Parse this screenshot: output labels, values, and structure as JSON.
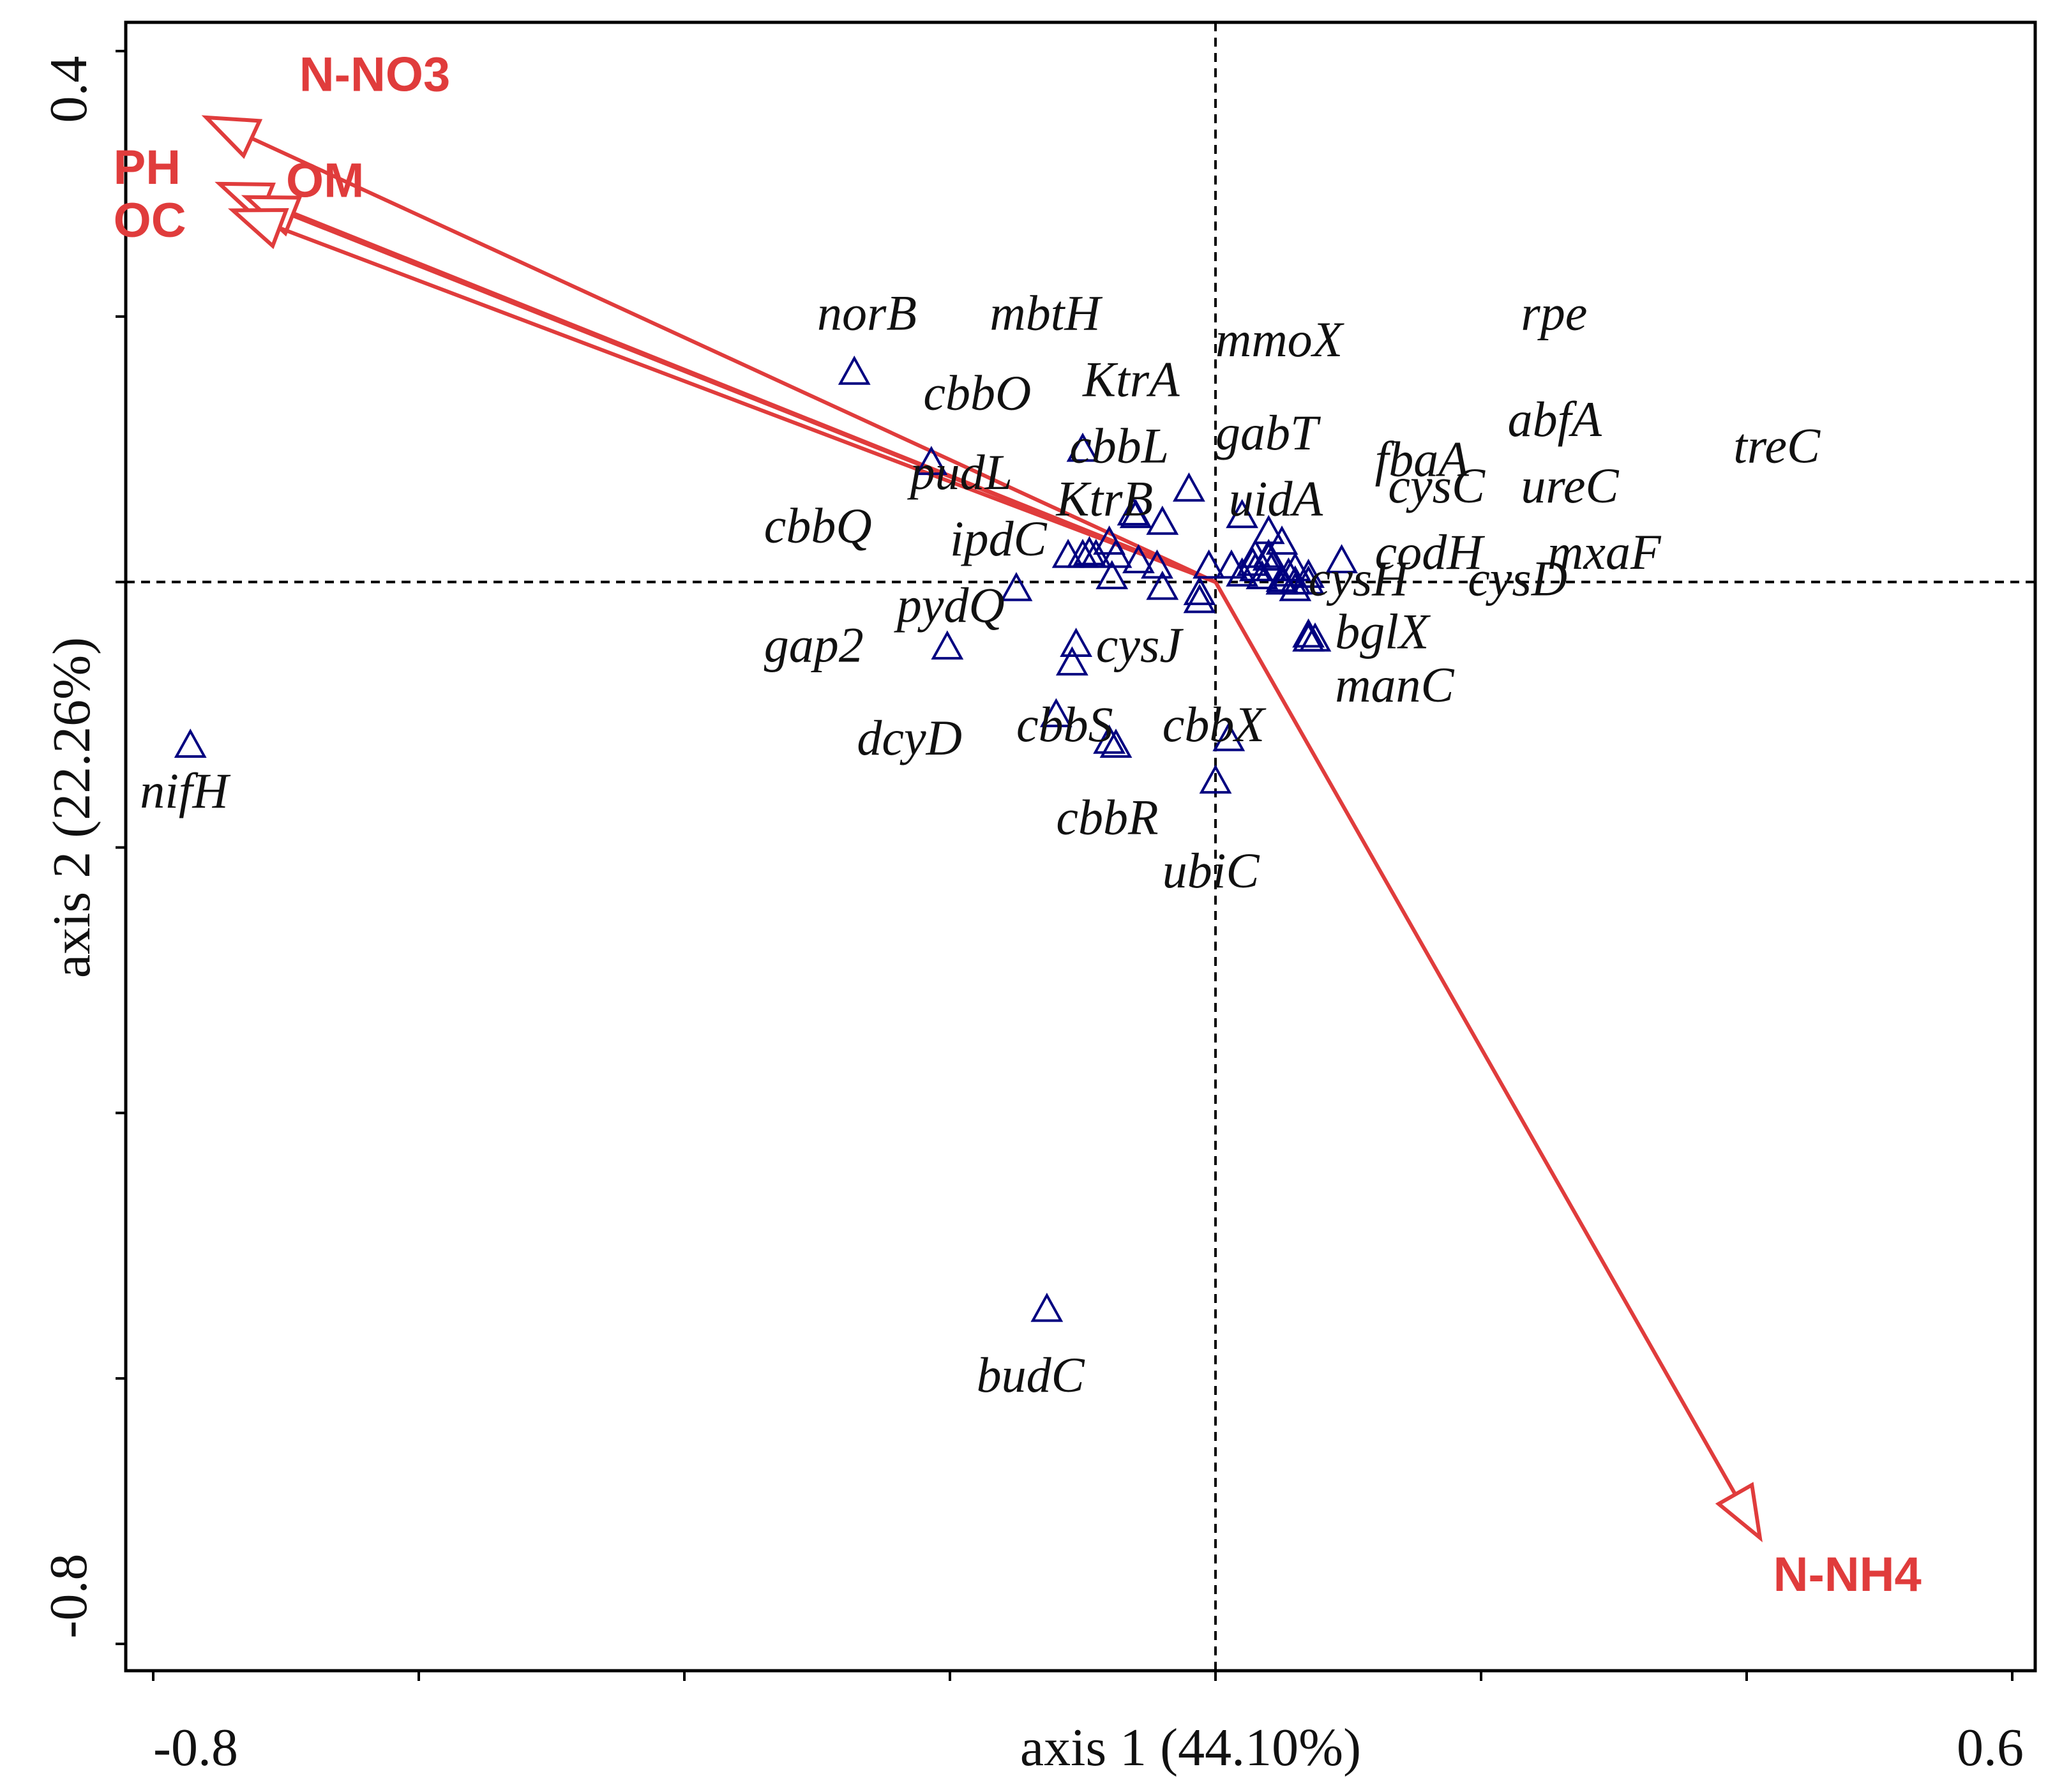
{
  "chart_data": {
    "type": "scatter",
    "subtype": "RDA biplot",
    "xlabel": "axis 1 (44.10%)",
    "ylabel": "axis 2 (22.26%)",
    "xlim": [
      -0.8,
      0.6
    ],
    "ylim": [
      -0.8,
      0.4
    ],
    "x_tick_labels": [
      "-0.8",
      "0.6"
    ],
    "y_tick_labels": [
      "0.4",
      "-0.8"
    ],
    "x_ticks": [
      -0.8,
      -0.6,
      -0.4,
      -0.2,
      0.0,
      0.2,
      0.4,
      0.6
    ],
    "y_ticks": [
      0.4,
      0.2,
      0.0,
      -0.2,
      -0.4,
      -0.6,
      -0.8
    ],
    "zero_lines": true,
    "colors": {
      "arrows": "#e03c3c",
      "genes": "#000080",
      "text": "#111111"
    },
    "env_vectors": [
      {
        "name": "N-NO3",
        "x": -0.76,
        "y": 0.35
      },
      {
        "name": "PH",
        "x": -0.75,
        "y": 0.3
      },
      {
        "name": "OM",
        "x": -0.73,
        "y": 0.29
      },
      {
        "name": "OC",
        "x": -0.74,
        "y": 0.28
      },
      {
        "name": "N-NH4",
        "x": 0.41,
        "y": -0.72
      }
    ],
    "genes": [
      {
        "name": "norB",
        "x": -0.272,
        "y": 0.158
      },
      {
        "name": "mbtH",
        "x": -0.1,
        "y": 0.1
      },
      {
        "name": "mmoX",
        "x": 0.02,
        "y": 0.05
      },
      {
        "name": "rpe",
        "x": 0.05,
        "y": 0.03
      },
      {
        "name": "cbbO",
        "x": -0.08,
        "y": 0.03
      },
      {
        "name": "KtrA",
        "x": -0.06,
        "y": 0.05
      },
      {
        "name": "gabT",
        "x": 0.03,
        "y": 0.01
      },
      {
        "name": "abfA",
        "x": 0.06,
        "y": 0.01
      },
      {
        "name": "cbbL",
        "x": -0.02,
        "y": 0.07
      },
      {
        "name": "fbaA",
        "x": 0.04,
        "y": 0.02
      },
      {
        "name": "treC",
        "x": 0.07,
        "y": 0.005
      },
      {
        "name": "pudL",
        "x": -0.214,
        "y": 0.09
      },
      {
        "name": "uidA",
        "x": 0.04,
        "y": 0.038
      },
      {
        "name": "cysC",
        "x": 0.05,
        "y": 0.0
      },
      {
        "name": "ureC",
        "x": 0.06,
        "y": 0.0
      },
      {
        "name": "KtrB",
        "x": -0.062,
        "y": 0.052
      },
      {
        "name": "cbbQ",
        "x": -0.1,
        "y": 0.02
      },
      {
        "name": "ipdC",
        "x": -0.09,
        "y": 0.02
      },
      {
        "name": "codH",
        "x": 0.095,
        "y": 0.016
      },
      {
        "name": "mxaF",
        "x": 0.07,
        "y": 0.0
      },
      {
        "name": "cysH",
        "x": 0.05,
        "y": 0.0
      },
      {
        "name": "cysD",
        "x": 0.06,
        "y": -0.005
      },
      {
        "name": "pydQ",
        "x": -0.15,
        "y": -0.005
      },
      {
        "name": "bglX",
        "x": 0.075,
        "y": -0.043
      },
      {
        "name": "cysJ",
        "x": -0.105,
        "y": -0.047
      },
      {
        "name": "gap2",
        "x": -0.202,
        "y": -0.049
      },
      {
        "name": "manC",
        "x": 0.07,
        "y": -0.04
      },
      {
        "name": "cbbS",
        "x": -0.075,
        "y": -0.123
      },
      {
        "name": "cbbX",
        "x": 0.01,
        "y": -0.118
      },
      {
        "name": "dcyD",
        "x": -0.12,
        "y": -0.1
      },
      {
        "name": "nifH",
        "x": -0.772,
        "y": -0.123
      },
      {
        "name": "cbbR",
        "x": -0.08,
        "y": -0.12
      },
      {
        "name": "ubiC",
        "x": 0.0,
        "y": -0.15
      },
      {
        "name": "budC",
        "x": -0.127,
        "y": -0.548
      }
    ],
    "unlabeled_gene_points": [
      {
        "x": -0.111,
        "y": 0.02
      },
      {
        "x": -0.095,
        "y": 0.022
      },
      {
        "x": -0.075,
        "y": 0.02
      },
      {
        "x": -0.058,
        "y": 0.016
      },
      {
        "x": -0.044,
        "y": 0.012
      },
      {
        "x": -0.078,
        "y": 0.004
      },
      {
        "x": -0.04,
        "y": -0.004
      },
      {
        "x": -0.012,
        "y": -0.008
      },
      {
        "x": -0.005,
        "y": 0.012
      },
      {
        "x": 0.012,
        "y": 0.012
      },
      {
        "x": 0.028,
        "y": 0.014
      },
      {
        "x": 0.042,
        "y": 0.01
      },
      {
        "x": 0.055,
        "y": 0.006
      },
      {
        "x": 0.035,
        "y": 0.004
      },
      {
        "x": 0.02,
        "y": 0.006
      },
      {
        "x": 0.05,
        "y": 0.002
      },
      {
        "x": -0.012,
        "y": -0.014
      },
      {
        "x": -0.108,
        "y": -0.061
      },
      {
        "x": 0.07,
        "y": -0.043
      },
      {
        "x": -0.04,
        "y": 0.045
      },
      {
        "x": 0.04,
        "y": 0.018
      },
      {
        "x": 0.03,
        "y": 0.02
      }
    ],
    "gene_label_layout": {
      "norB": [
        -0.3,
        0.19
      ],
      "mbtH": [
        -0.17,
        0.19
      ],
      "mmoX": [
        0.0,
        0.17
      ],
      "rpe": [
        0.23,
        0.19
      ],
      "cbbO": [
        -0.22,
        0.13
      ],
      "KtrA": [
        -0.1,
        0.14
      ],
      "gabT": [
        0.0,
        0.1
      ],
      "abfA": [
        0.22,
        0.11
      ],
      "cbbL": [
        -0.11,
        0.09
      ],
      "fbaA": [
        0.12,
        0.08
      ],
      "treC": [
        0.39,
        0.09
      ],
      "pudL": [
        -0.23,
        0.07
      ],
      "uidA": [
        0.01,
        0.05
      ],
      "cysC": [
        0.13,
        0.06
      ],
      "ureC": [
        0.23,
        0.06
      ],
      "KtrB": [
        -0.12,
        0.05
      ],
      "cbbQ": [
        -0.34,
        0.03
      ],
      "ipdC": [
        -0.2,
        0.02
      ],
      "codH": [
        0.12,
        0.01
      ],
      "mxaF": [
        0.25,
        0.01
      ],
      "cysH": [
        0.07,
        -0.01
      ],
      "cysD": [
        0.19,
        -0.01
      ],
      "pydQ": [
        -0.24,
        -0.03
      ],
      "bglX": [
        0.09,
        -0.05
      ],
      "cysJ": [
        -0.09,
        -0.06
      ],
      "gap2": [
        -0.34,
        -0.06
      ],
      "manC": [
        0.09,
        -0.09
      ],
      "cbbS": [
        -0.15,
        -0.12
      ],
      "cbbX": [
        -0.04,
        -0.12
      ],
      "dcyD": [
        -0.27,
        -0.13
      ],
      "nifH": [
        -0.81,
        -0.17
      ],
      "cbbR": [
        -0.12,
        -0.19
      ],
      "ubiC": [
        -0.04,
        -0.23
      ],
      "budC": [
        -0.18,
        -0.61
      ]
    },
    "env_label_layout": {
      "N-NO3": [
        -0.69,
        0.37
      ],
      "PH": [
        -0.83,
        0.3
      ],
      "OM": [
        -0.7,
        0.29
      ],
      "OC": [
        -0.83,
        0.26
      ],
      "N-NH4": [
        0.42,
        -0.76
      ]
    }
  }
}
